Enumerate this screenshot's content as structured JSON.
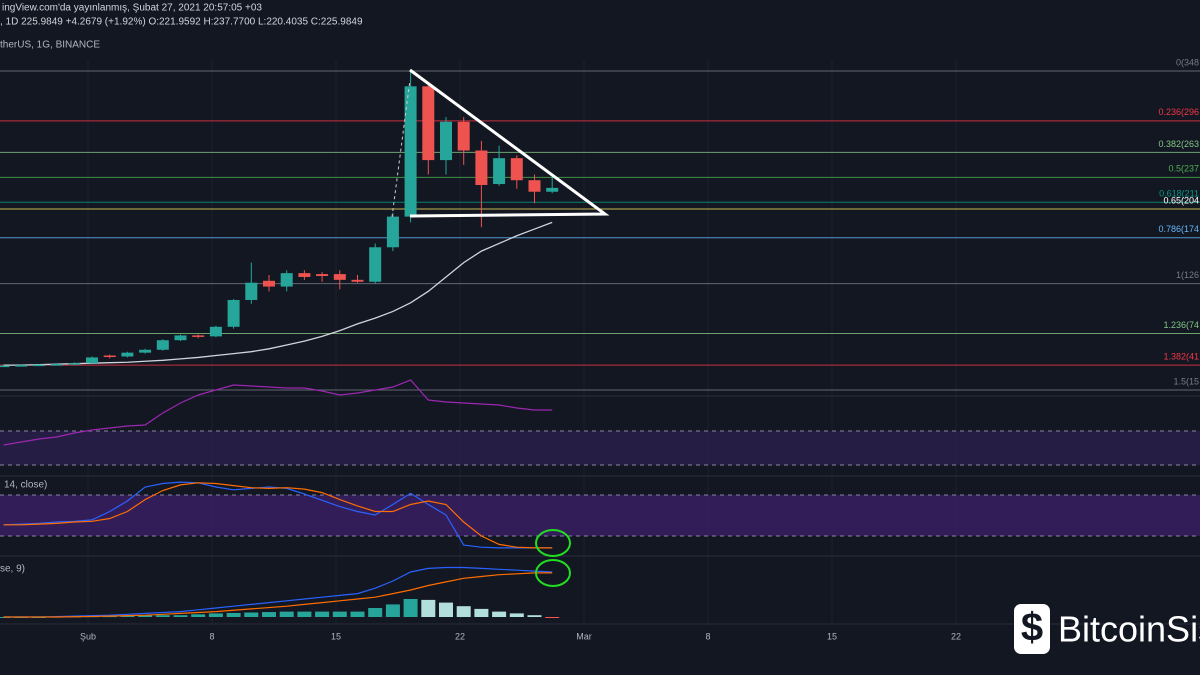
{
  "header": {
    "published": "ingView.com'da yayınlanmış, Şubat 27, 2021 20:57:05 +03",
    "quote": ", 1D 225.9849 +4.2679 (+1.92%) O:221.9592 H:237.7700 L:220.4035 C:225.9849",
    "symbol": "therUS, 1G, BINANCE"
  },
  "stoch_label": "14, close)",
  "macd_label": "se, 9)",
  "x_labels": [
    "Şub",
    "8",
    "15",
    "22",
    "Mar",
    "8",
    "15",
    "22"
  ],
  "watermark": "BitcoinSis",
  "fib_levels": [
    {
      "label": "0(348",
      "value": 348,
      "color": "#787b86"
    },
    {
      "label": "0.236(296",
      "value": 296,
      "color": "#f23645"
    },
    {
      "label": "0.382(263",
      "value": 263,
      "color": "#81c784"
    },
    {
      "label": "0.5(237",
      "value": 237,
      "color": "#4caf50"
    },
    {
      "label": "0.618(211",
      "value": 211,
      "color": "#089981"
    },
    {
      "label": "0.65(204",
      "value": 204,
      "color": "#f6e05e"
    },
    {
      "label": "0.786(174",
      "value": 174,
      "color": "#64b5f6"
    },
    {
      "label": "1(126",
      "value": 126,
      "color": "#787b86"
    },
    {
      "label": "1.236(74",
      "value": 74,
      "color": "#81c784"
    },
    {
      "label": "1.382(41",
      "value": 41,
      "color": "#f23645"
    },
    {
      "label": "1.5(15",
      "value": 15,
      "color": "#787b86"
    }
  ],
  "candles": {
    "up_color": "#26a69a",
    "down_color": "#ef5350",
    "open": [
      40,
      40.5,
      41,
      41.5,
      42,
      43,
      51,
      50,
      54,
      57,
      67,
      72,
      71,
      81,
      109,
      129,
      123,
      137,
      136,
      136,
      130,
      128,
      164,
      196,
      332,
      255,
      295,
      265,
      230,
      257,
      234,
      221.9592
    ],
    "high": [
      41,
      42,
      42,
      43,
      44,
      50,
      52,
      55,
      58,
      68,
      73,
      73,
      82,
      110,
      148,
      135,
      140,
      140,
      138,
      140,
      135,
      168,
      200,
      348,
      335,
      300,
      300,
      275,
      270,
      260,
      240,
      237.77
    ],
    "low": [
      39,
      39.5,
      40,
      41,
      41,
      42,
      48,
      49,
      53,
      56,
      66,
      69,
      70,
      79,
      105,
      118,
      118,
      130,
      128,
      120,
      127,
      126,
      160,
      190,
      240,
      240,
      250,
      185,
      228,
      225,
      210,
      220.4035
    ],
    "close": [
      40.5,
      41,
      41.5,
      42,
      43,
      49,
      50,
      54,
      57,
      67,
      72,
      71,
      81,
      109,
      127,
      123,
      137,
      133,
      134,
      130,
      128,
      164,
      196,
      332,
      255,
      295,
      265,
      229,
      257,
      234,
      222,
      225.9849
    ]
  },
  "moving_average": [
    41,
    41,
    41.5,
    42,
    42.5,
    43,
    43.5,
    44,
    45,
    46,
    47.5,
    49,
    51,
    53,
    55,
    58,
    62,
    66,
    71,
    77,
    84,
    90,
    97,
    106,
    118,
    133,
    148,
    160,
    168,
    176,
    183,
    190
  ],
  "rsi": [
    30,
    33,
    36,
    38,
    42,
    45,
    47,
    49,
    50,
    62,
    72,
    80,
    85,
    90,
    89,
    88,
    87,
    87,
    84,
    80,
    82,
    85,
    88,
    95,
    75,
    73,
    72,
    71,
    70,
    67,
    65,
    65
  ],
  "stoch_k": [
    36,
    37,
    38,
    40,
    41,
    43,
    55,
    70,
    90,
    95,
    97,
    96,
    90,
    86,
    88,
    90,
    88,
    80,
    71,
    62,
    55,
    50,
    65,
    81,
    65,
    50,
    7,
    4,
    3,
    3,
    3,
    3
  ],
  "stoch_d": [
    36,
    36,
    37,
    38,
    40,
    41,
    45,
    55,
    72,
    85,
    93,
    96,
    95,
    92,
    89,
    88,
    89,
    87,
    82,
    72,
    63,
    55,
    55,
    65,
    70,
    65,
    40,
    20,
    8,
    4,
    3,
    3
  ],
  "macd": [
    0,
    0,
    0,
    0.5,
    1,
    1.5,
    2,
    3,
    4,
    5,
    6,
    8,
    10,
    12,
    14,
    16,
    18,
    20,
    22,
    24,
    26,
    32,
    40,
    50,
    54,
    55,
    55,
    54,
    53,
    52,
    51,
    50
  ],
  "signal": [
    0,
    0,
    0,
    0,
    0.3,
    0.6,
    1,
    1.5,
    2,
    3,
    4,
    5,
    6,
    7.5,
    9,
    10.5,
    12,
    14,
    16,
    18,
    20,
    22,
    26,
    30,
    35,
    39,
    43,
    45,
    47,
    48,
    49,
    49
  ],
  "histogram": [
    0,
    0,
    0,
    0.5,
    0.7,
    0.9,
    1,
    1.5,
    2,
    2,
    2,
    3,
    4,
    4.5,
    5,
    5.5,
    6,
    6,
    6,
    6,
    6,
    10,
    14,
    20,
    19,
    16,
    12,
    9,
    6,
    4,
    2,
    -1
  ]
}
